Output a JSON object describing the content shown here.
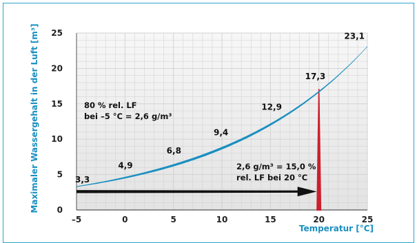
{
  "chart_data": {
    "type": "line",
    "xlabel": "Temperatur [°C]",
    "ylabel": "Maximaler Wassergehalt in der Luft [m³]",
    "xlim": [
      -5,
      25
    ],
    "ylim": [
      0,
      25
    ],
    "x_ticks": [
      -5,
      0,
      5,
      10,
      15,
      20,
      25
    ],
    "y_ticks": [
      0,
      5,
      10,
      15,
      20,
      25
    ],
    "x_tick_labels": [
      "–5",
      "0",
      "5",
      "10",
      "15",
      "20",
      "25"
    ],
    "y_tick_labels": [
      "0",
      "5",
      "10",
      "15",
      "20",
      "25"
    ],
    "grid": true,
    "series": [
      {
        "x": [
          -5,
          0,
          5,
          10,
          15,
          20,
          25
        ],
        "y": [
          3.3,
          4.9,
          6.8,
          9.4,
          12.9,
          17.3,
          23.1
        ],
        "labels": [
          "3,3",
          "4,9",
          "6,8",
          "9,4",
          "12,9",
          "17,3",
          "23,1"
        ],
        "color": "#1a8fc0"
      }
    ],
    "arrow": {
      "from": [
        -5,
        2.6
      ],
      "to": [
        20,
        2.6
      ],
      "color": "#111111"
    },
    "vertical_marker": {
      "x": 20,
      "y_from": 0,
      "y_to": 17.3,
      "color": "#cc1f2e"
    },
    "annotations": [
      {
        "lines": [
          "80 % rel. LF",
          "bei –5 °C = 2,6 g/m³"
        ]
      },
      {
        "lines": [
          "2,6 g/m³ = 15,0 %",
          "rel. LF bei 20 °C"
        ]
      }
    ],
    "colors": {
      "axis_title": "#1a8fc0",
      "grid": "#cfcfcf",
      "frame": "#2aa3c8",
      "plot_background": "#e9e9e9"
    }
  }
}
